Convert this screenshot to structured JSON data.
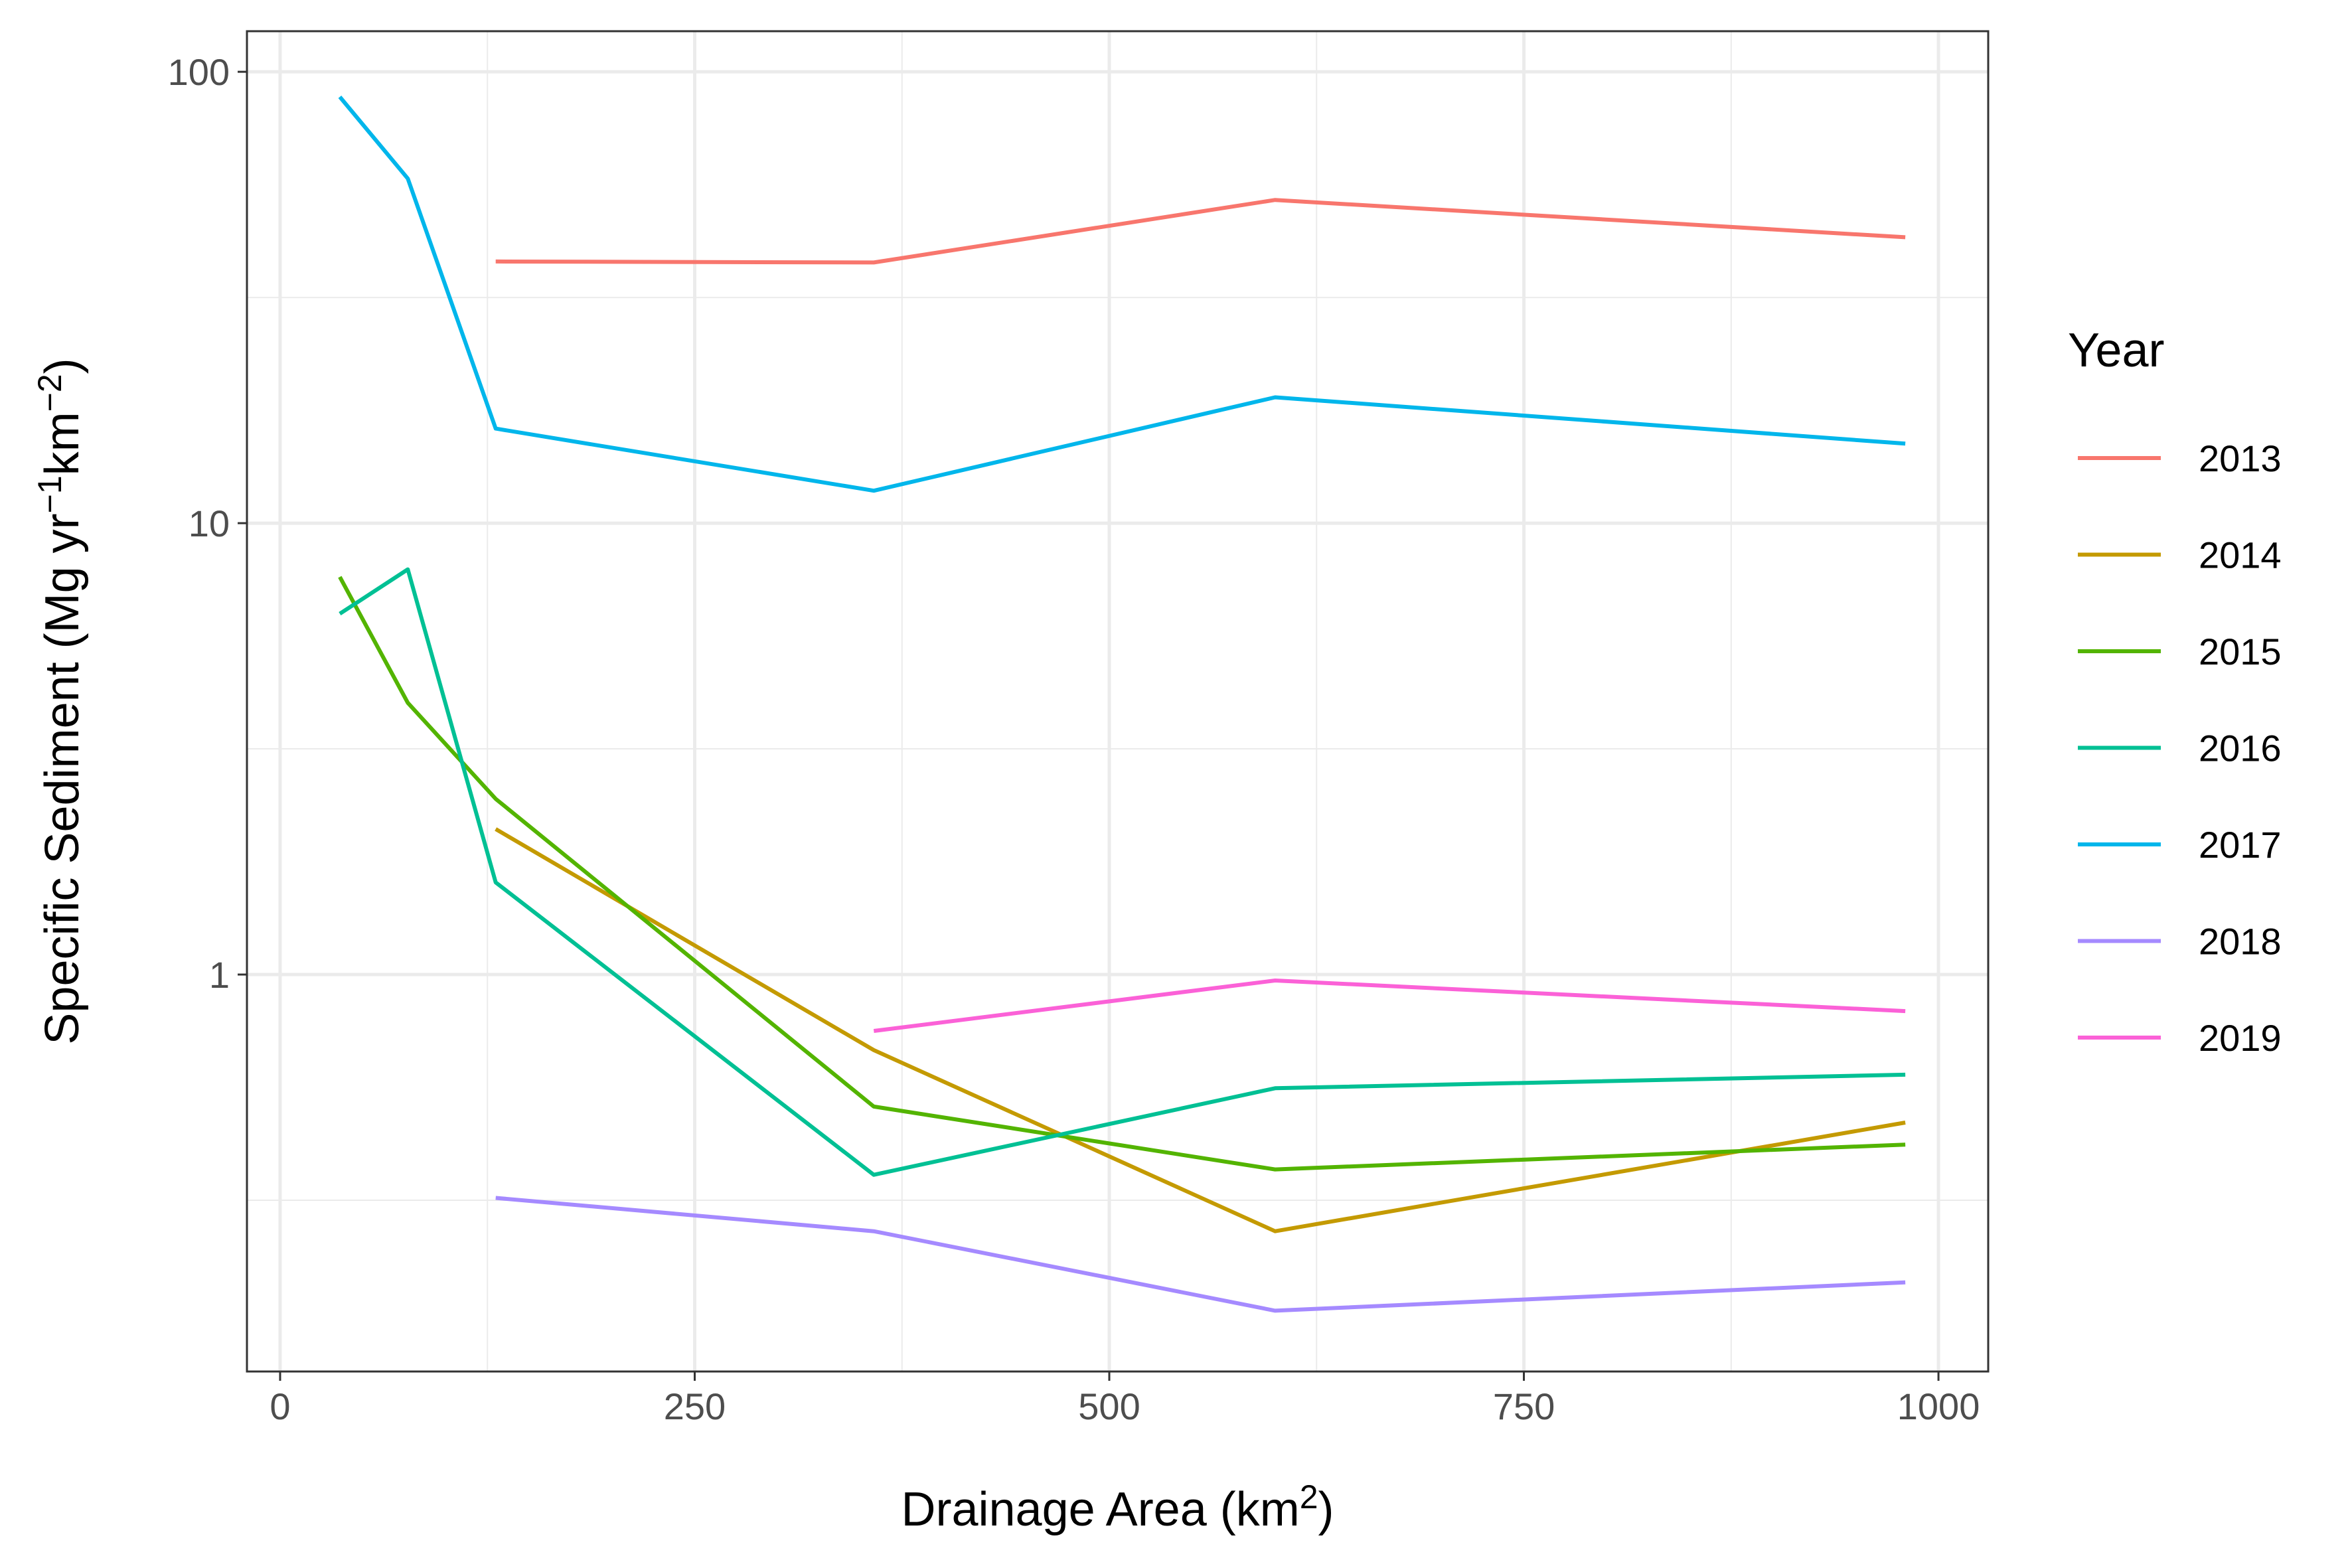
{
  "chart_data": {
    "type": "line",
    "xlabel": {
      "text": "Drainage Area (km",
      "sup": "2",
      "suffix": ")"
    },
    "ylabel": {
      "p1": "Specific Sediment (Mg yr",
      "s1": "−1",
      "p2": "km",
      "s2": "−2",
      "p3": ")"
    },
    "xscale": "linear",
    "yscale": "log10",
    "xlim": [
      -20,
      1030
    ],
    "ylim": [
      0.132,
      123
    ],
    "xticks": [
      0,
      250,
      500,
      750,
      1000
    ],
    "xtick_labels": [
      "0",
      "250",
      "500",
      "750",
      "1000"
    ],
    "yticks": [
      1,
      10,
      100
    ],
    "ytick_labels": [
      "1",
      "10",
      "100"
    ],
    "grid": true,
    "legend": {
      "title": "Year",
      "position": "right"
    },
    "series": [
      {
        "name": "2013",
        "color": "#F8766D",
        "x": [
          130,
          358,
          600,
          980
        ],
        "y": [
          38,
          37.8,
          52,
          43
        ]
      },
      {
        "name": "2014",
        "color": "#C49A00",
        "x": [
          130,
          358,
          600,
          980
        ],
        "y": [
          2.1,
          0.68,
          0.27,
          0.47
        ]
      },
      {
        "name": "2015",
        "color": "#53B400",
        "x": [
          36,
          77,
          130,
          358,
          600,
          980
        ],
        "y": [
          7.6,
          4.0,
          2.45,
          0.51,
          0.37,
          0.42
        ]
      },
      {
        "name": "2016",
        "color": "#00C094",
        "x": [
          36,
          77,
          130,
          358,
          600,
          980
        ],
        "y": [
          6.3,
          7.9,
          1.6,
          0.36,
          0.56,
          0.6
        ]
      },
      {
        "name": "2017",
        "color": "#00B6EB",
        "x": [
          36,
          77,
          130,
          358,
          600,
          980
        ],
        "y": [
          88,
          58,
          16.2,
          11.8,
          19,
          15
        ]
      },
      {
        "name": "2018",
        "color": "#A58AFF",
        "x": [
          130,
          358,
          600,
          980
        ],
        "y": [
          0.32,
          0.27,
          0.18,
          0.208
        ]
      },
      {
        "name": "2019",
        "color": "#FB61D7",
        "x": [
          358,
          600,
          980
        ],
        "y": [
          0.75,
          0.97,
          0.83
        ]
      }
    ]
  }
}
